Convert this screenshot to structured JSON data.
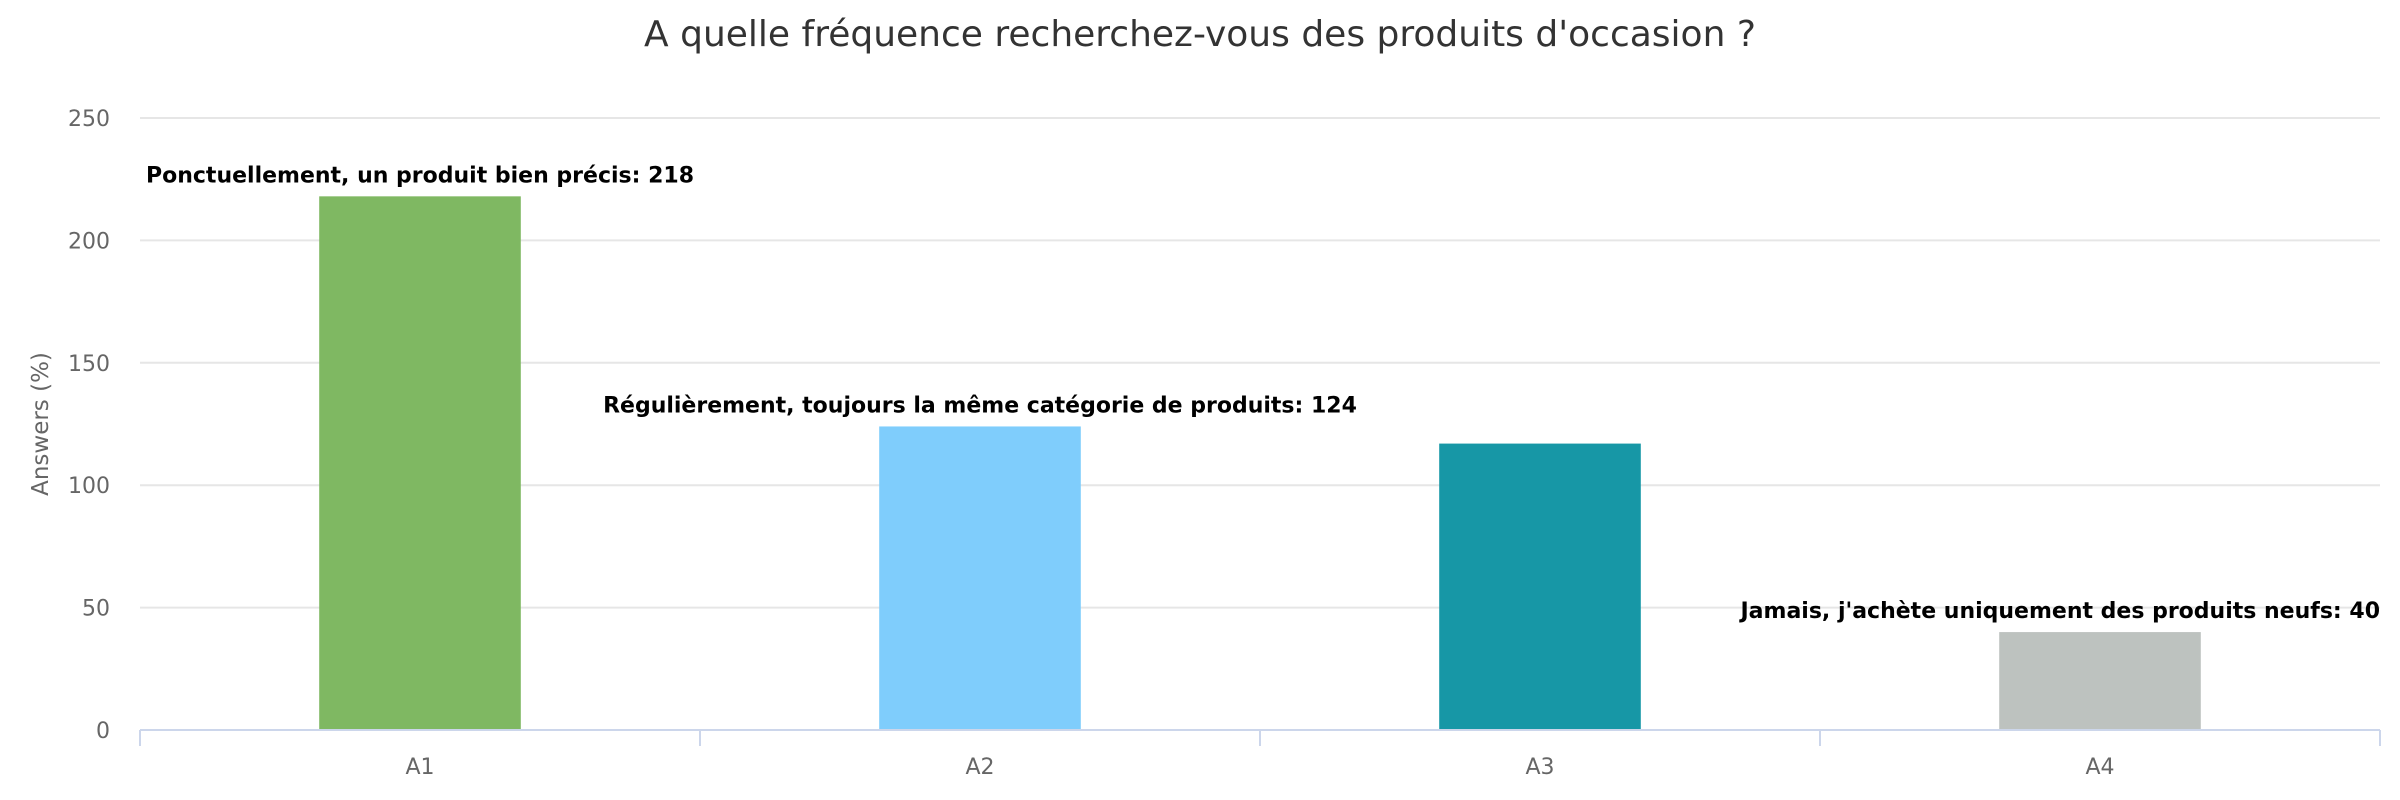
{
  "chart_data": {
    "type": "bar",
    "title": "A quelle fréquence recherchez-vous des produits d'occasion ?",
    "xlabel": "",
    "ylabel": "Answers (%)",
    "ylim": [
      0,
      250
    ],
    "yticks": [
      0,
      50,
      100,
      150,
      200,
      250
    ],
    "grid": true,
    "categories": [
      "A1",
      "A2",
      "A3",
      "A4"
    ],
    "values": [
      218,
      124,
      117,
      40
    ],
    "data_labels": [
      "Ponctuellement, un produit bien précis: 218",
      "Régulièrement, toujours la même catégorie de produits: 124",
      "",
      "Jamais, j'achète uniquement des produits neufs: 40"
    ],
    "colors": [
      "#7fb862",
      "#7fcdfc",
      "#1797a6",
      "#bdc2bf"
    ]
  }
}
